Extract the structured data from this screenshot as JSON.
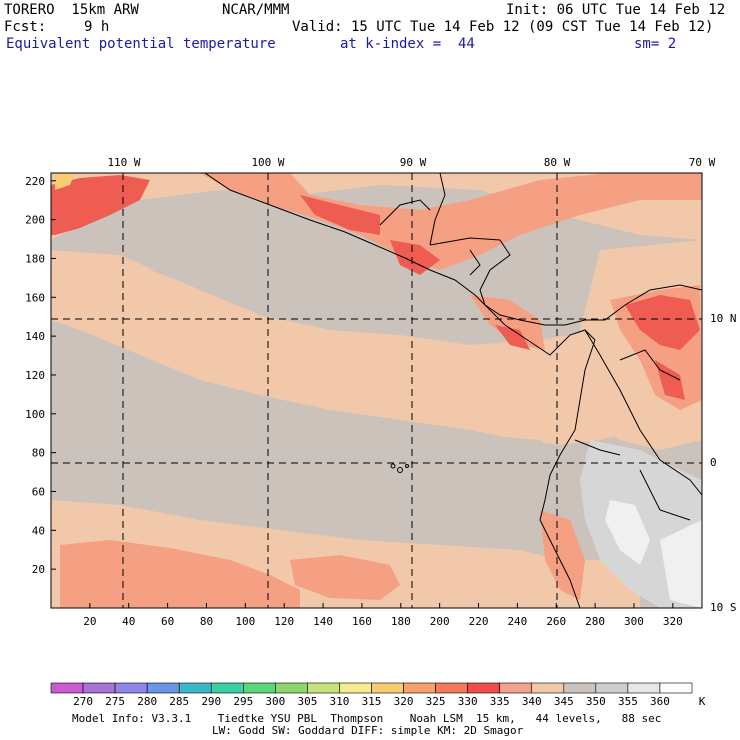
{
  "header": {
    "model": "TORERO  15km ARW",
    "org": "NCAR/MMM",
    "init": "Init: 06 UTC Tue 14 Feb 12",
    "fcst_label": "Fcst:",
    "fcst_value": "9 h",
    "valid": "Valid: 15 UTC Tue 14 Feb 12 (09 CST Tue 14 Feb 12)",
    "field": "Equivalent potential temperature",
    "level": "at k-index =  44",
    "smooth": "sm= 2"
  },
  "map": {
    "lon_labels": [
      "110 W",
      "100 W",
      "90 W",
      "80 W",
      "70 W"
    ],
    "lat_labels": [
      "10 N",
      "0",
      "10 S"
    ],
    "x_ticks": [
      "20",
      "40",
      "60",
      "80",
      "100",
      "120",
      "140",
      "160",
      "180",
      "200",
      "220",
      "240",
      "260",
      "280",
      "300",
      "320"
    ],
    "y_ticks": [
      "20",
      "40",
      "60",
      "80",
      "100",
      "120",
      "140",
      "160",
      "180",
      "200",
      "220"
    ],
    "colors": {
      "background_main": "#cbc2bb",
      "salmon_light": "#f2c8aa",
      "salmon": "#f5a083",
      "red": "#ee5c52",
      "gray_light": "#d6d6d6",
      "white_high": "#f0f0f0"
    }
  },
  "colorbar": {
    "levels": [
      "270",
      "275",
      "280",
      "285",
      "290",
      "295",
      "300",
      "305",
      "310",
      "315",
      "320",
      "325",
      "330",
      "335",
      "340",
      "345",
      "350",
      "355",
      "360"
    ],
    "unit": "K",
    "colors": [
      "#c85ccf",
      "#a873d8",
      "#8f85e8",
      "#6a96ea",
      "#3ab8c8",
      "#3ad1a5",
      "#5ad67d",
      "#8dd86a",
      "#c6e27a",
      "#f2ec8e",
      "#f6cc6e",
      "#f6a26a",
      "#f3785e",
      "#ef4d48",
      "#f0a08c",
      "#f2c8aa",
      "#cdc3bd",
      "#cfcfcf",
      "#e6e6e6",
      "#ffffff"
    ]
  },
  "footer": {
    "line1": "Model Info: V3.3.1    Tiedtke YSU PBL  Thompson    Noah LSM  15 km,   44 levels,   88 sec",
    "line2": "LW: Godd SW: Goddard DIFF: simple KM: 2D Smagor"
  }
}
